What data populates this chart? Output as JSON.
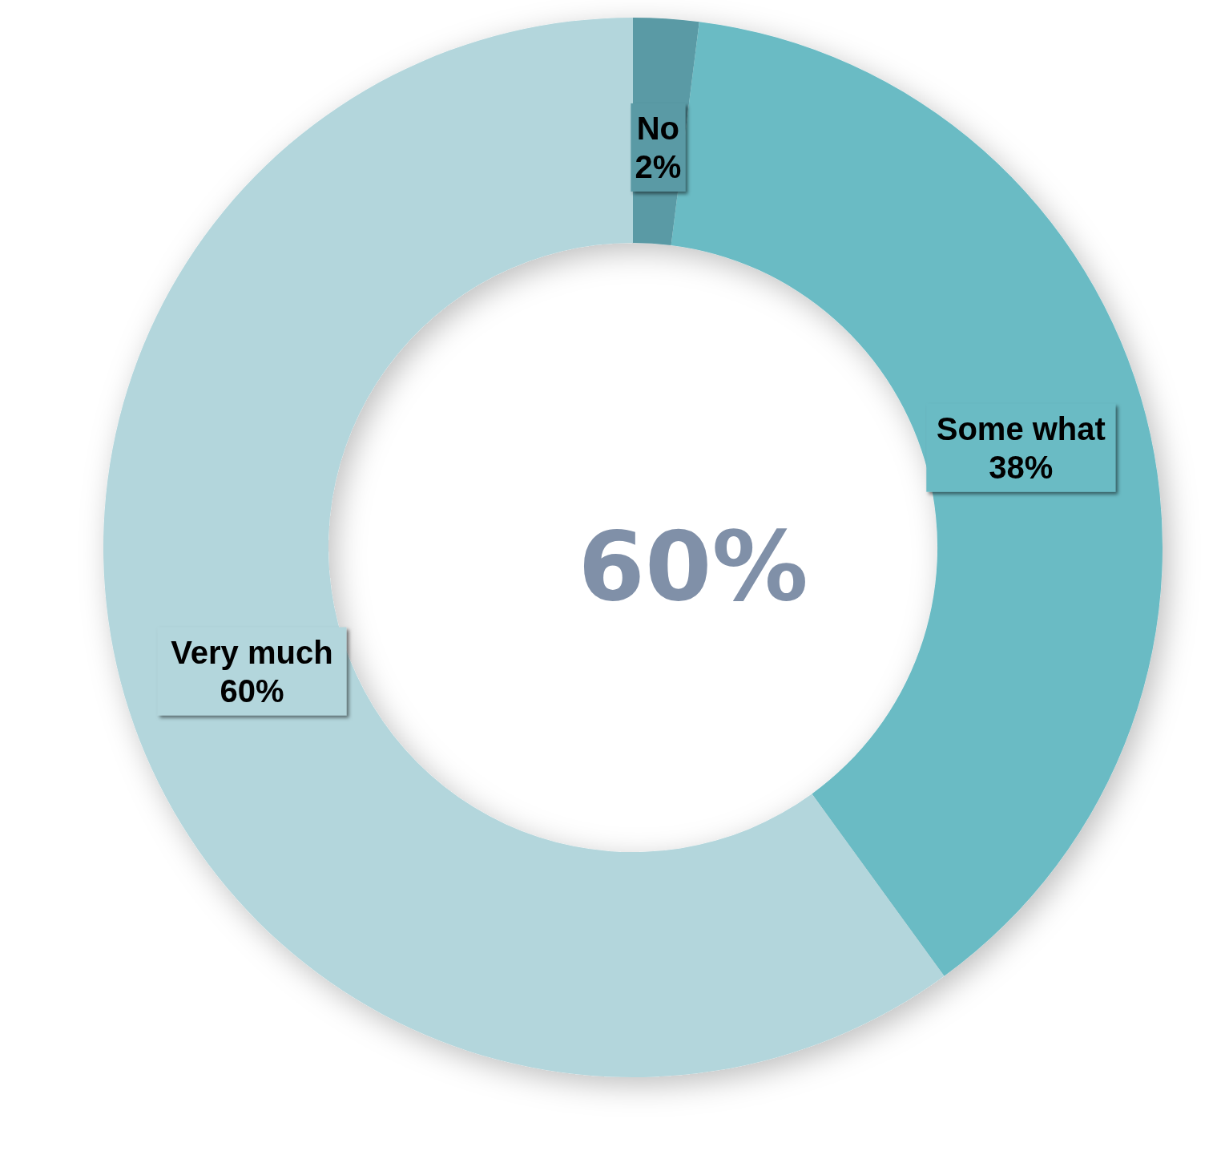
{
  "chart_data": {
    "type": "donut",
    "categories": [
      "No",
      "Some what",
      "Very much"
    ],
    "values": [
      2,
      38,
      60
    ],
    "colors": [
      "#5a9aa5",
      "#6abbc4",
      "#b3d6dc"
    ],
    "value_labels": [
      "2%",
      "38%",
      "60%"
    ],
    "annotations": [
      "60%"
    ]
  }
}
